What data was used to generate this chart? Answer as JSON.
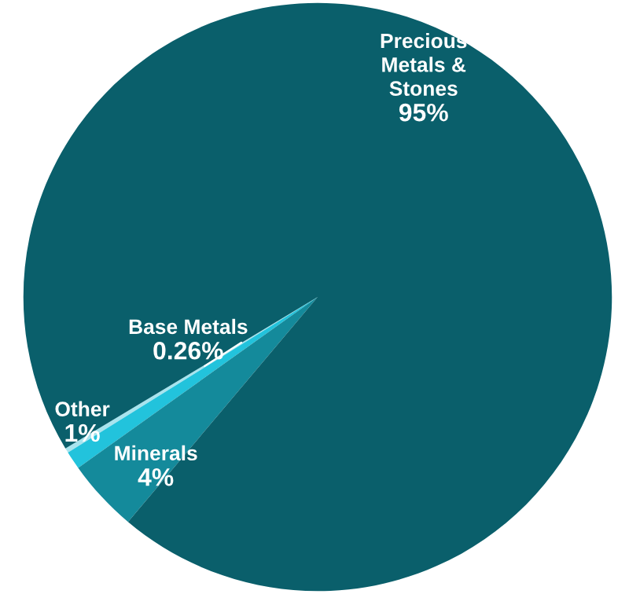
{
  "chart_data": {
    "type": "pie",
    "categories": [
      "Base Metals",
      "Other",
      "Minerals",
      "Precious Metals & Stones"
    ],
    "values": [
      0.26,
      1,
      4,
      95
    ],
    "colors": [
      "#a8e4ee",
      "#22c3dc",
      "#148a9b",
      "#0a5f6b"
    ],
    "value_labels": [
      "0.26%",
      "1%",
      "4%",
      "95%"
    ]
  }
}
